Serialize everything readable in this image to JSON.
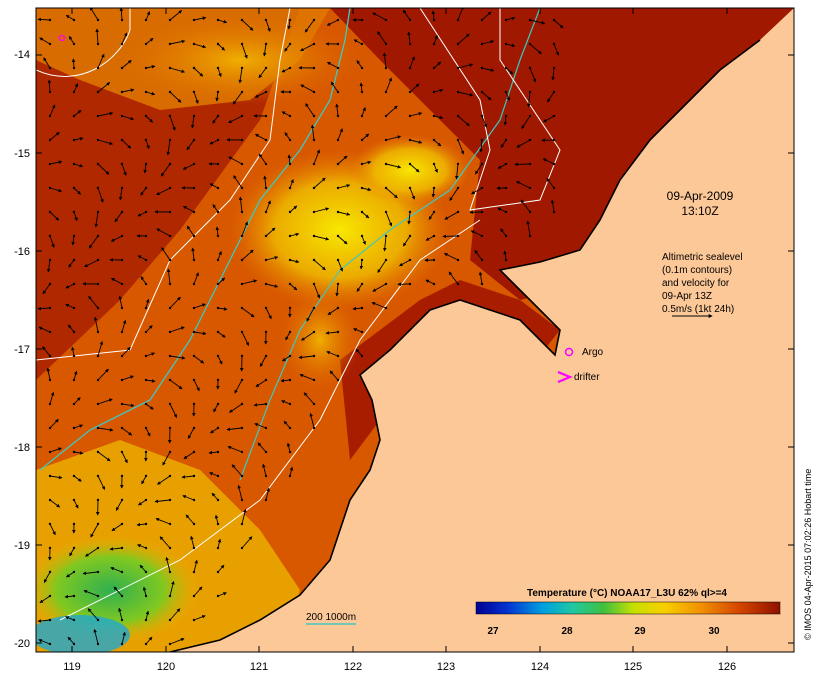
{
  "map": {
    "date": "09-Apr-2009",
    "time": "13:10Z",
    "altimetry_note": [
      "Altimetric sealevel",
      "(0.1m contours)",
      "and velocity for",
      "09-Apr 13Z",
      "0.5m/s (1kt 24h)"
    ],
    "legend": {
      "argo": "Argo",
      "drifter": "drifter"
    },
    "isobath_label": "200  1000m",
    "colorbar": {
      "title": "Temperature (°C) NOAA17_L3U 62% ql>=4",
      "ticks": [
        "27",
        "28",
        "29",
        "30"
      ]
    },
    "credit": "© IMOS 04-Apr-2015 07:02:26 Hobart time",
    "lat_labels": [
      "-14",
      "-15",
      "-16",
      "-17",
      "-18",
      "-19",
      "-20"
    ],
    "lon_labels": [
      "119",
      "120",
      "121",
      "122",
      "123",
      "124",
      "125",
      "126"
    ],
    "colors": {
      "land": "#fcc898",
      "sst_warm": "#a01800",
      "sst_mid": "#e07000",
      "sst_cool": "#f0c000",
      "sst_cold": "#30b040",
      "isobath": "#40c8c0",
      "contour": "#ffffff",
      "argo": "#ff00ff"
    }
  }
}
